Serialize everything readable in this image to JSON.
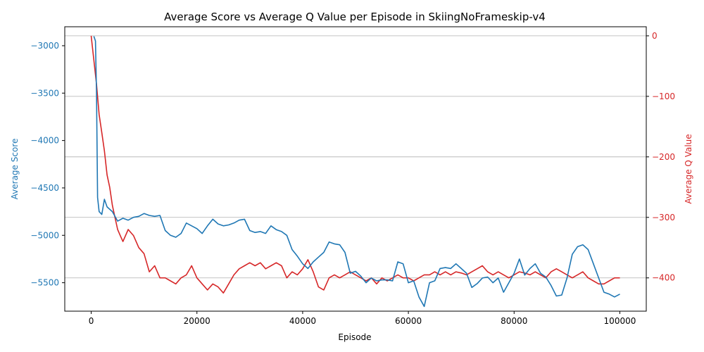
{
  "chart_data": {
    "type": "line",
    "title": "Average Score vs Average Q Value per Episode in SkiingNoFrameskip-v4",
    "xlabel": "Episode",
    "xlim": [
      -5000,
      105000
    ],
    "xticks": [
      0,
      20000,
      40000,
      60000,
      80000,
      100000
    ],
    "xtick_labels": [
      "0",
      "20000",
      "40000",
      "60000",
      "80000",
      "100000"
    ],
    "y_left": {
      "label": "Average Score",
      "color": "#1f77b4",
      "ylim": [
        -5800,
        -2800
      ],
      "ticks": [
        -3000,
        -3500,
        -4000,
        -4500,
        -5000,
        -5500
      ],
      "tick_labels": [
        "−3000",
        "−3500",
        "−4000",
        "−4500",
        "−5000",
        "−5500"
      ]
    },
    "y_right": {
      "label": "Average Q Value",
      "color": "#d62728",
      "ylim": [
        -455,
        15
      ],
      "ticks": [
        0,
        -100,
        -200,
        -300,
        -400
      ],
      "tick_labels": [
        "0",
        "−100",
        "−200",
        "−300",
        "−400"
      ],
      "grid": true
    },
    "series": [
      {
        "name": "Average Score",
        "axis": "left",
        "color": "#1f77b4",
        "x": [
          500,
          800,
          1000,
          1200,
          1500,
          2000,
          2500,
          3000,
          4000,
          5000,
          6000,
          7000,
          8000,
          9000,
          10000,
          11000,
          12000,
          13000,
          14000,
          15000,
          16000,
          17000,
          18000,
          19000,
          20000,
          21000,
          22000,
          23000,
          24000,
          25000,
          26000,
          27000,
          28000,
          29000,
          30000,
          31000,
          32000,
          33000,
          34000,
          35000,
          36000,
          37000,
          38000,
          39000,
          40000,
          41000,
          42000,
          43000,
          44000,
          45000,
          46000,
          47000,
          48000,
          49000,
          50000,
          51000,
          52000,
          53000,
          54000,
          55000,
          56000,
          57000,
          58000,
          59000,
          60000,
          61000,
          62000,
          63000,
          64000,
          65000,
          66000,
          67000,
          68000,
          69000,
          70000,
          71000,
          72000,
          73000,
          74000,
          75000,
          76000,
          77000,
          78000,
          79000,
          80000,
          81000,
          82000,
          83000,
          84000,
          85000,
          86000,
          87000,
          88000,
          89000,
          90000,
          91000,
          92000,
          93000,
          94000,
          95000,
          96000,
          97000,
          98000,
          99000,
          100000
        ],
        "values": [
          -2900,
          -2950,
          -3500,
          -4600,
          -4750,
          -4780,
          -4620,
          -4700,
          -4750,
          -4850,
          -4820,
          -4840,
          -4810,
          -4800,
          -4770,
          -4790,
          -4800,
          -4790,
          -4950,
          -5000,
          -5020,
          -4980,
          -4870,
          -4900,
          -4930,
          -4980,
          -4900,
          -4830,
          -4880,
          -4900,
          -4890,
          -4870,
          -4840,
          -4830,
          -4950,
          -4970,
          -4960,
          -4980,
          -4900,
          -4940,
          -4960,
          -5000,
          -5150,
          -5220,
          -5300,
          -5350,
          -5280,
          -5230,
          -5180,
          -5070,
          -5090,
          -5100,
          -5180,
          -5400,
          -5380,
          -5430,
          -5500,
          -5450,
          -5480,
          -5470,
          -5470,
          -5480,
          -5280,
          -5300,
          -5500,
          -5480,
          -5650,
          -5750,
          -5500,
          -5480,
          -5350,
          -5340,
          -5350,
          -5300,
          -5350,
          -5400,
          -5550,
          -5510,
          -5450,
          -5440,
          -5500,
          -5450,
          -5600,
          -5500,
          -5400,
          -5250,
          -5420,
          -5350,
          -5300,
          -5400,
          -5440,
          -5530,
          -5640,
          -5630,
          -5450,
          -5200,
          -5120,
          -5100,
          -5150,
          -5300,
          -5450,
          -5600,
          -5620,
          -5650,
          -5620
        ]
      },
      {
        "name": "Average Q Value",
        "axis": "right",
        "color": "#d62728",
        "x": [
          0,
          500,
          1000,
          1500,
          2000,
          2500,
          3000,
          3500,
          4000,
          4500,
          5000,
          5500,
          6000,
          7000,
          8000,
          9000,
          10000,
          11000,
          12000,
          13000,
          14000,
          15000,
          16000,
          17000,
          18000,
          19000,
          20000,
          21000,
          22000,
          23000,
          24000,
          25000,
          26000,
          27000,
          28000,
          29000,
          30000,
          31000,
          32000,
          33000,
          34000,
          35000,
          36000,
          37000,
          38000,
          39000,
          40000,
          41000,
          42000,
          43000,
          44000,
          45000,
          46000,
          47000,
          48000,
          49000,
          50000,
          51000,
          52000,
          53000,
          54000,
          55000,
          56000,
          57000,
          58000,
          59000,
          60000,
          61000,
          62000,
          63000,
          64000,
          65000,
          66000,
          67000,
          68000,
          69000,
          70000,
          71000,
          72000,
          73000,
          74000,
          75000,
          76000,
          77000,
          78000,
          79000,
          80000,
          81000,
          82000,
          83000,
          84000,
          85000,
          86000,
          87000,
          88000,
          89000,
          90000,
          91000,
          92000,
          93000,
          94000,
          95000,
          96000,
          97000,
          98000,
          99000,
          100000
        ],
        "values": [
          0,
          -40,
          -80,
          -130,
          -160,
          -190,
          -230,
          -250,
          -280,
          -300,
          -320,
          -330,
          -340,
          -320,
          -330,
          -350,
          -360,
          -390,
          -380,
          -400,
          -400,
          -405,
          -410,
          -400,
          -395,
          -380,
          -400,
          -410,
          -420,
          -410,
          -415,
          -425,
          -410,
          -395,
          -385,
          -380,
          -375,
          -380,
          -375,
          -385,
          -380,
          -375,
          -380,
          -400,
          -390,
          -395,
          -385,
          -370,
          -390,
          -415,
          -420,
          -400,
          -395,
          -400,
          -395,
          -390,
          -395,
          -400,
          -405,
          -400,
          -410,
          -400,
          -405,
          -400,
          -395,
          -400,
          -400,
          -405,
          -400,
          -395,
          -395,
          -390,
          -395,
          -390,
          -395,
          -390,
          -392,
          -395,
          -390,
          -385,
          -380,
          -390,
          -395,
          -390,
          -395,
          -400,
          -395,
          -390,
          -392,
          -395,
          -390,
          -395,
          -400,
          -390,
          -385,
          -390,
          -395,
          -400,
          -395,
          -390,
          -400,
          -405,
          -410,
          -410,
          -405,
          -400,
          -400
        ]
      }
    ]
  }
}
